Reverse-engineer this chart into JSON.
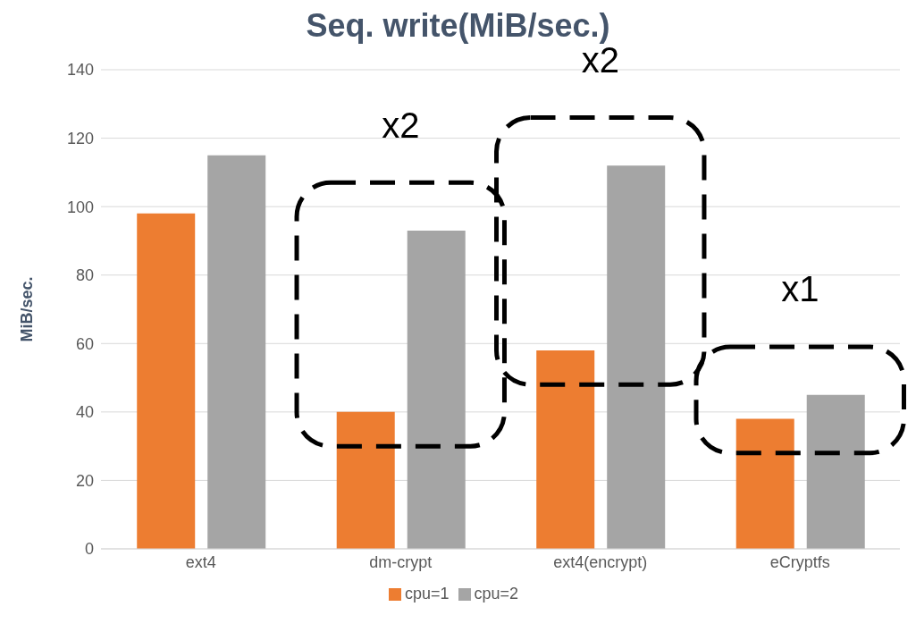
{
  "chart_data": {
    "type": "bar",
    "title": "Seq. write(MiB/sec.)",
    "ylabel": "MiB/sec.",
    "categories": [
      "ext4",
      "dm-crypt",
      "ext4(encrypt)",
      "eCryptfs"
    ],
    "series": [
      {
        "name": "cpu=1",
        "color": "#ed7d31",
        "values": [
          98,
          40,
          58,
          38
        ]
      },
      {
        "name": "cpu=2",
        "color": "#a5a5a5",
        "values": [
          115,
          93,
          112,
          45
        ]
      }
    ],
    "ylim": [
      0,
      140
    ],
    "yticks": [
      0,
      20,
      40,
      60,
      80,
      100,
      120,
      140
    ],
    "grid": "y",
    "legend": "bottom",
    "annotations": [
      "x2",
      "x2",
      "x1"
    ]
  }
}
